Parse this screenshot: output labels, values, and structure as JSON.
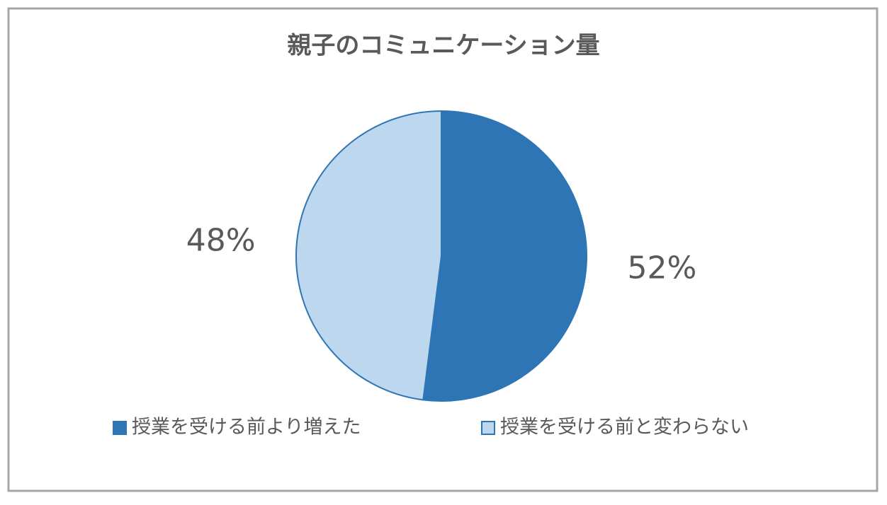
{
  "chart_data": {
    "type": "pie",
    "title": "親子のコミュニケーション量",
    "categories": [
      "授業を受ける前より増えた",
      "授業を受ける前と変わらない"
    ],
    "values": [
      52,
      48
    ],
    "value_labels": [
      "52%",
      "48%"
    ],
    "colors": [
      "#2e75b6",
      "#bdd7ee"
    ],
    "legend": "bottom"
  }
}
